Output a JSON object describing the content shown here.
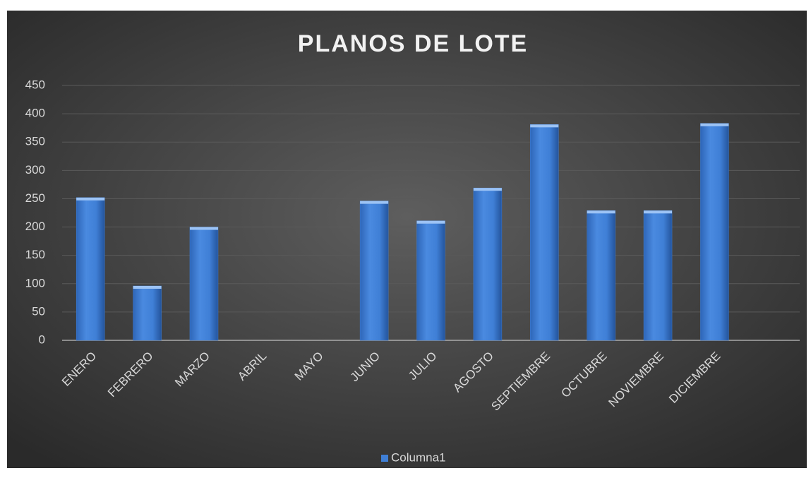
{
  "chart_data": {
    "type": "bar",
    "title": "PLANOS DE LOTE",
    "categories": [
      "ENERO",
      "FEBRERO",
      "MARZO",
      "ABRIL",
      "MAYO",
      "JUNIO",
      "JULIO",
      "AGOSTO",
      "SEPTIEMBRE",
      "OCTUBRE",
      "NOVIEMBRE",
      "DICIEMBRE",
      null
    ],
    "series": [
      {
        "name": "Columna1",
        "color": "#3f7fd6",
        "values": [
          252,
          96,
          200,
          null,
          null,
          246,
          211,
          269,
          381,
          229,
          229,
          383,
          null
        ]
      }
    ],
    "ylim": [
      0,
      450
    ],
    "yticks": [
      0,
      50,
      100,
      150,
      200,
      250,
      300,
      350,
      400,
      450
    ],
    "grid": true,
    "legend": "bottom"
  }
}
